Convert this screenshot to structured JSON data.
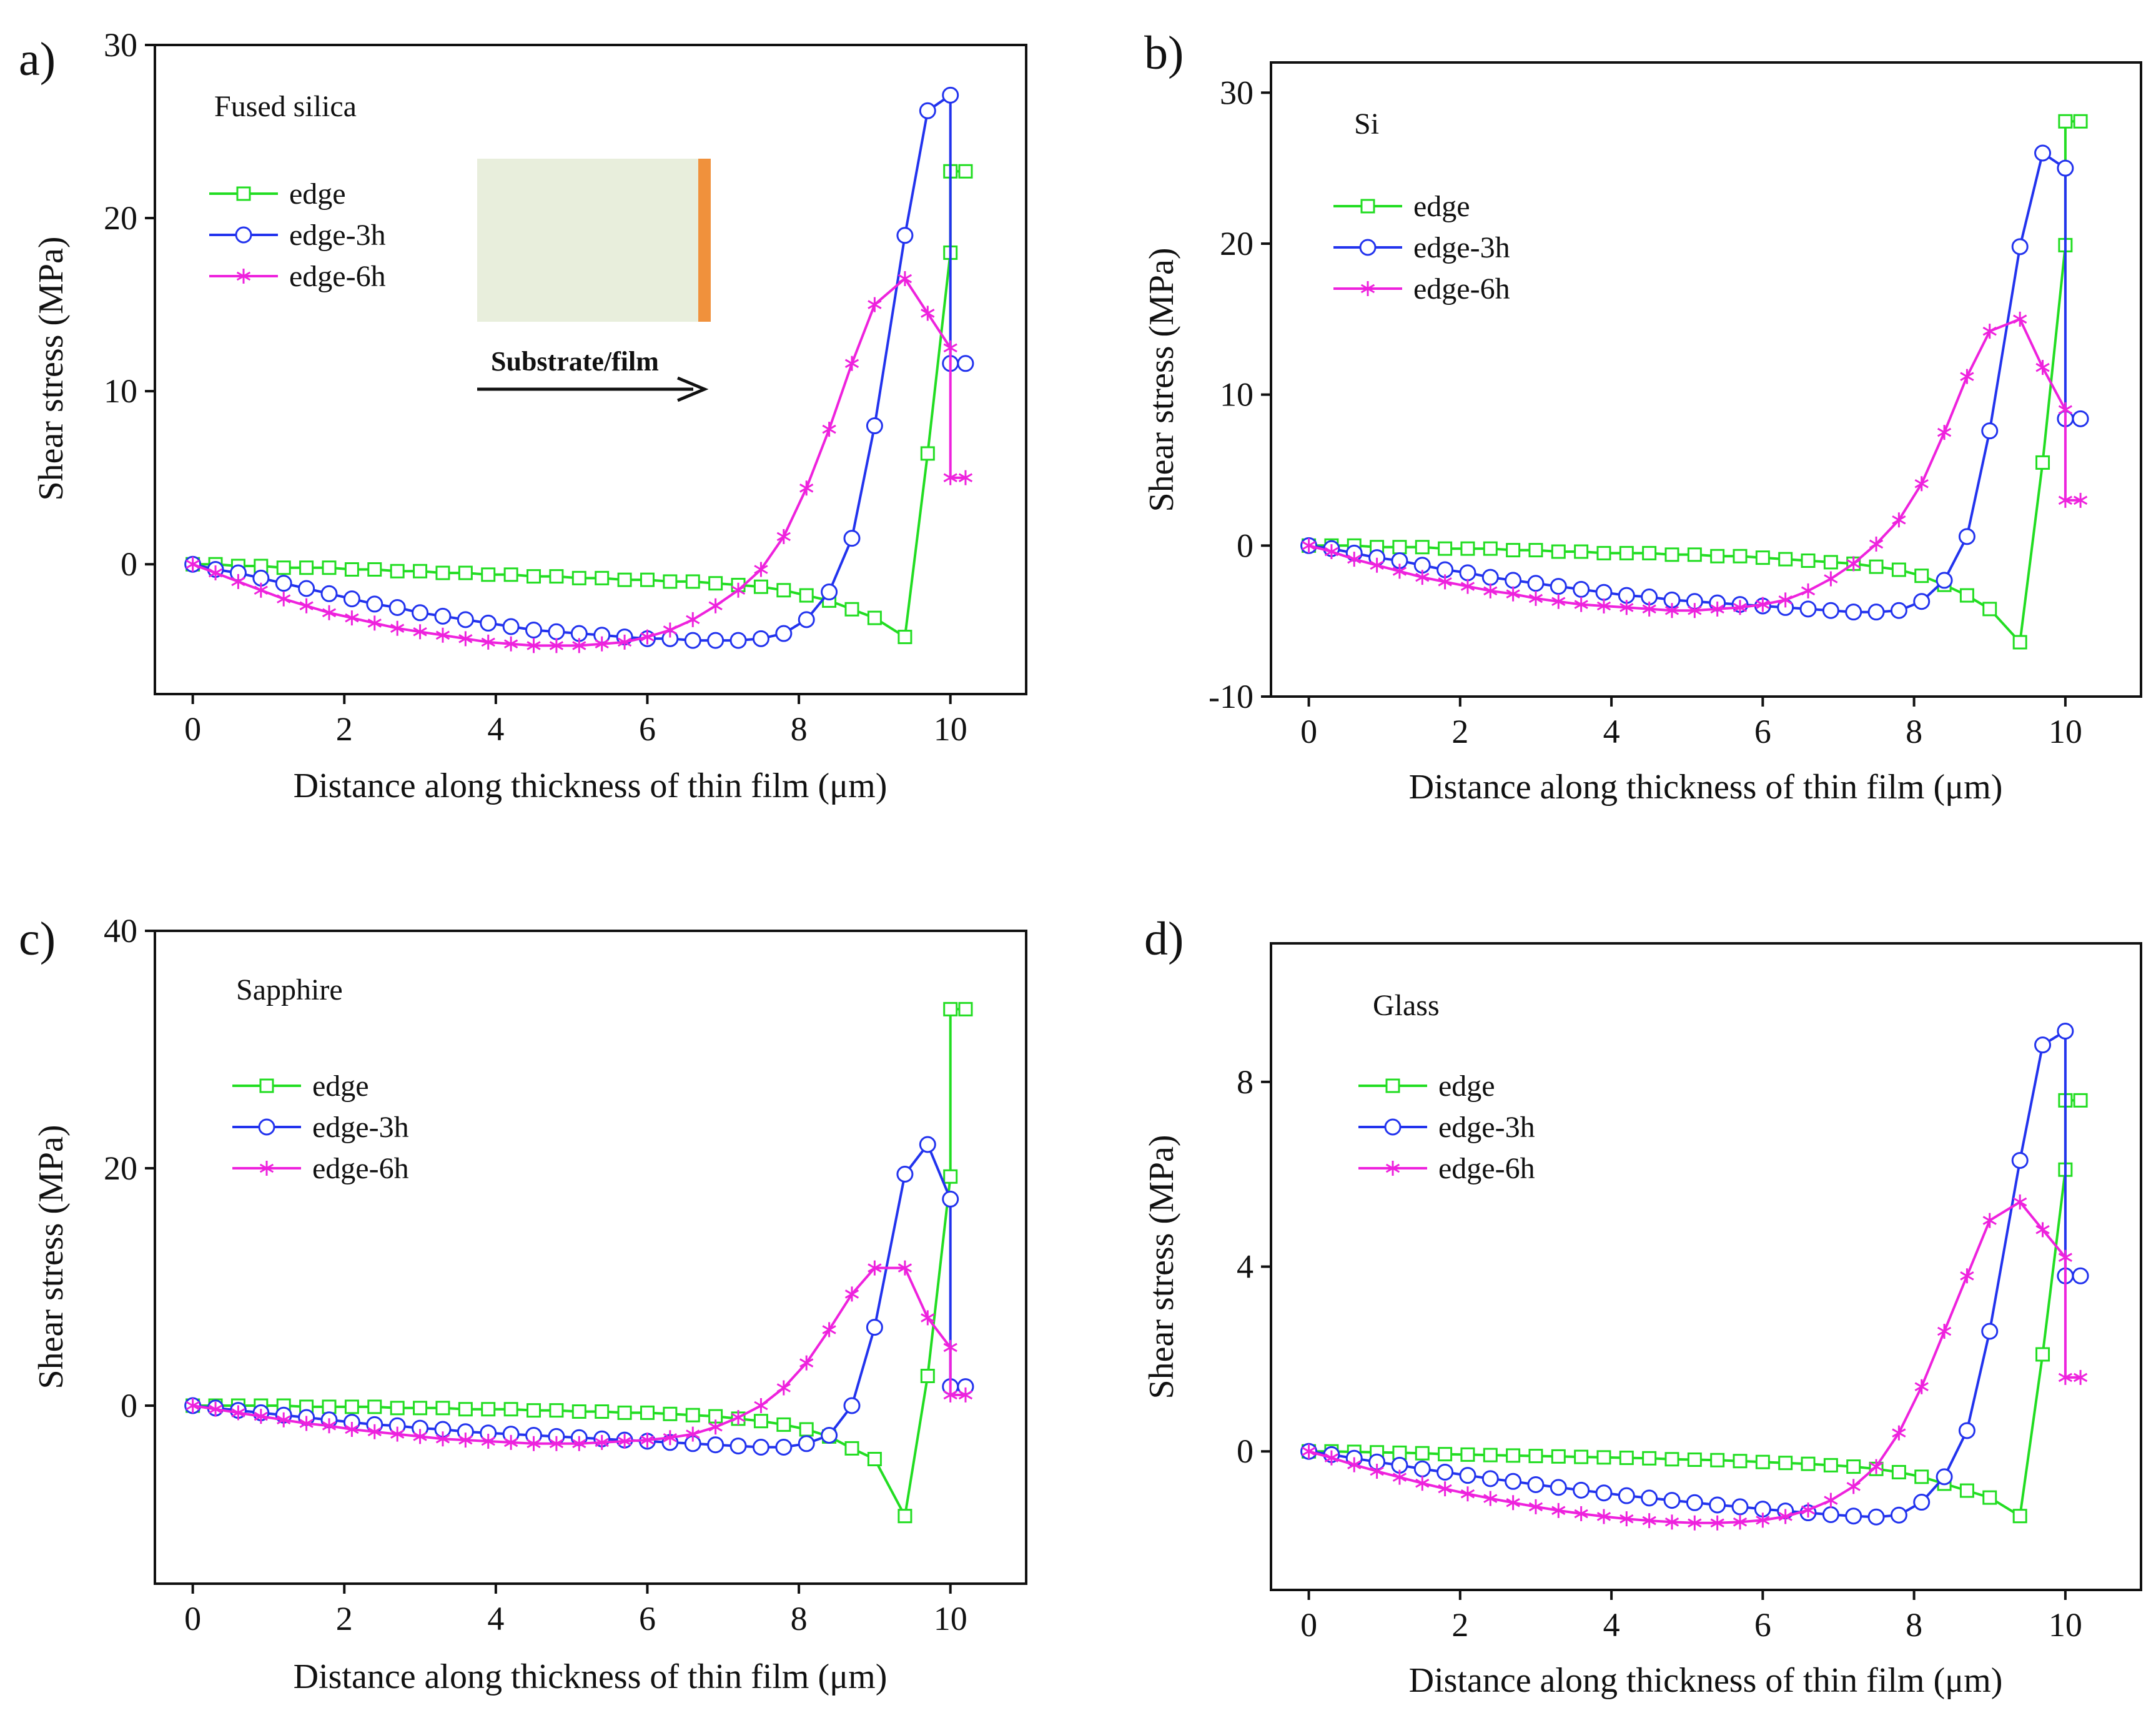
{
  "figure": {
    "inset": {
      "label": "Substrate/film",
      "substrate_color": "#e8eedc",
      "film_color": "#f0913c"
    },
    "series_styles": [
      {
        "name": "edge",
        "color": "#22dd22",
        "marker": "square"
      },
      {
        "name": "edge-3h",
        "color": "#2233ee",
        "marker": "circle"
      },
      {
        "name": "edge-6h",
        "color": "#ee22dd",
        "marker": "asterisk"
      }
    ]
  },
  "chart_data": [
    {
      "panel": "a)",
      "type": "line",
      "material": "Fused silica",
      "xlabel": "Distance along thickness of thin film (μm)",
      "ylabel": "Shear stress (MPa)",
      "xlim": [
        -0.5,
        11
      ],
      "ylim": [
        -7.5,
        30
      ],
      "xticks": [
        0,
        2,
        4,
        6,
        8,
        10
      ],
      "yticks": [
        0,
        10,
        20,
        30
      ],
      "legend": [
        "edge",
        "edge-3h",
        "edge-6h"
      ],
      "series": [
        {
          "name": "edge",
          "x": [
            0,
            0.3,
            0.6,
            0.9,
            1.2,
            1.5,
            1.8,
            2.1,
            2.4,
            2.7,
            3.0,
            3.3,
            3.6,
            3.9,
            4.2,
            4.5,
            4.8,
            5.1,
            5.4,
            5.7,
            6.0,
            6.3,
            6.6,
            6.9,
            7.2,
            7.5,
            7.8,
            8.1,
            8.4,
            8.7,
            9.0,
            9.4,
            9.7,
            10.0,
            10.0,
            10.2
          ],
          "y": [
            0,
            0,
            -0.1,
            -0.1,
            -0.2,
            -0.2,
            -0.2,
            -0.3,
            -0.3,
            -0.4,
            -0.4,
            -0.5,
            -0.5,
            -0.6,
            -0.6,
            -0.7,
            -0.7,
            -0.8,
            -0.8,
            -0.9,
            -0.9,
            -1.0,
            -1.0,
            -1.1,
            -1.2,
            -1.3,
            -1.5,
            -1.8,
            -2.1,
            -2.6,
            -3.1,
            -4.2,
            6.4,
            18.0,
            22.7,
            22.7
          ]
        },
        {
          "name": "edge-3h",
          "x": [
            0,
            0.3,
            0.6,
            0.9,
            1.2,
            1.5,
            1.8,
            2.1,
            2.4,
            2.7,
            3.0,
            3.3,
            3.6,
            3.9,
            4.2,
            4.5,
            4.8,
            5.1,
            5.4,
            5.7,
            6.0,
            6.3,
            6.6,
            6.9,
            7.2,
            7.5,
            7.8,
            8.1,
            8.4,
            8.7,
            9.0,
            9.4,
            9.7,
            10.0,
            10.0,
            10.2
          ],
          "y": [
            0,
            -0.3,
            -0.5,
            -0.8,
            -1.1,
            -1.4,
            -1.7,
            -2.0,
            -2.3,
            -2.5,
            -2.8,
            -3.0,
            -3.2,
            -3.4,
            -3.6,
            -3.8,
            -3.9,
            -4.0,
            -4.1,
            -4.2,
            -4.3,
            -4.3,
            -4.4,
            -4.4,
            -4.4,
            -4.3,
            -4.0,
            -3.2,
            -1.6,
            1.5,
            8.0,
            19.0,
            26.2,
            27.1,
            11.6,
            11.6
          ]
        },
        {
          "name": "edge-6h",
          "x": [
            0,
            0.3,
            0.6,
            0.9,
            1.2,
            1.5,
            1.8,
            2.1,
            2.4,
            2.7,
            3.0,
            3.3,
            3.6,
            3.9,
            4.2,
            4.5,
            4.8,
            5.1,
            5.4,
            5.7,
            6.0,
            6.3,
            6.6,
            6.9,
            7.2,
            7.5,
            7.8,
            8.1,
            8.4,
            8.7,
            9.0,
            9.4,
            9.7,
            10.0,
            10.0,
            10.2
          ],
          "y": [
            0,
            -0.5,
            -1.0,
            -1.5,
            -2.0,
            -2.4,
            -2.8,
            -3.1,
            -3.4,
            -3.7,
            -3.9,
            -4.1,
            -4.3,
            -4.5,
            -4.6,
            -4.7,
            -4.7,
            -4.7,
            -4.6,
            -4.5,
            -4.2,
            -3.8,
            -3.2,
            -2.4,
            -1.5,
            -0.3,
            1.6,
            4.4,
            7.8,
            11.6,
            15.0,
            16.5,
            14.5,
            12.5,
            5.0,
            5.0
          ]
        }
      ]
    },
    {
      "panel": "b)",
      "type": "line",
      "material": "Si",
      "xlabel": "Distance along thickness of thin film (μm)",
      "ylabel": "Shear stress (MPa)",
      "xlim": [
        -0.5,
        11
      ],
      "ylim": [
        -10,
        32
      ],
      "xticks": [
        0,
        2,
        4,
        6,
        8,
        10
      ],
      "yticks": [
        -10,
        0,
        10,
        20,
        30
      ],
      "legend": [
        "edge",
        "edge-3h",
        "edge-6h"
      ],
      "series": [
        {
          "name": "edge",
          "x": [
            0,
            0.3,
            0.6,
            0.9,
            1.2,
            1.5,
            1.8,
            2.1,
            2.4,
            2.7,
            3.0,
            3.3,
            3.6,
            3.9,
            4.2,
            4.5,
            4.8,
            5.1,
            5.4,
            5.7,
            6.0,
            6.3,
            6.6,
            6.9,
            7.2,
            7.5,
            7.8,
            8.1,
            8.4,
            8.7,
            9.0,
            9.4,
            9.7,
            10.0,
            10.0,
            10.2
          ],
          "y": [
            0,
            0,
            0,
            -0.1,
            -0.1,
            -0.1,
            -0.2,
            -0.2,
            -0.2,
            -0.3,
            -0.3,
            -0.4,
            -0.4,
            -0.5,
            -0.5,
            -0.5,
            -0.6,
            -0.6,
            -0.7,
            -0.7,
            -0.8,
            -0.9,
            -1.0,
            -1.1,
            -1.2,
            -1.4,
            -1.6,
            -2.0,
            -2.6,
            -3.3,
            -4.2,
            -6.4,
            5.5,
            19.9,
            28.1,
            28.1
          ]
        },
        {
          "name": "edge-3h",
          "x": [
            0,
            0.3,
            0.6,
            0.9,
            1.2,
            1.5,
            1.8,
            2.1,
            2.4,
            2.7,
            3.0,
            3.3,
            3.6,
            3.9,
            4.2,
            4.5,
            4.8,
            5.1,
            5.4,
            5.7,
            6.0,
            6.3,
            6.6,
            6.9,
            7.2,
            7.5,
            7.8,
            8.1,
            8.4,
            8.7,
            9.0,
            9.4,
            9.7,
            10.0,
            10.0,
            10.2
          ],
          "y": [
            0,
            -0.2,
            -0.5,
            -0.8,
            -1.0,
            -1.3,
            -1.6,
            -1.8,
            -2.1,
            -2.3,
            -2.5,
            -2.7,
            -2.9,
            -3.1,
            -3.3,
            -3.4,
            -3.6,
            -3.7,
            -3.8,
            -3.9,
            -4.0,
            -4.1,
            -4.2,
            -4.3,
            -4.4,
            -4.4,
            -4.3,
            -3.7,
            -2.3,
            0.6,
            7.6,
            19.8,
            26.0,
            25.0,
            8.4,
            8.4
          ]
        },
        {
          "name": "edge-6h",
          "x": [
            0,
            0.3,
            0.6,
            0.9,
            1.2,
            1.5,
            1.8,
            2.1,
            2.4,
            2.7,
            3.0,
            3.3,
            3.6,
            3.9,
            4.2,
            4.5,
            4.8,
            5.1,
            5.4,
            5.7,
            6.0,
            6.3,
            6.6,
            6.9,
            7.2,
            7.5,
            7.8,
            8.1,
            8.4,
            8.7,
            9.0,
            9.4,
            9.7,
            10.0,
            10.0,
            10.2
          ],
          "y": [
            0,
            -0.4,
            -0.9,
            -1.3,
            -1.7,
            -2.1,
            -2.4,
            -2.7,
            -3.0,
            -3.2,
            -3.5,
            -3.7,
            -3.9,
            -4.0,
            -4.1,
            -4.2,
            -4.3,
            -4.3,
            -4.2,
            -4.1,
            -3.9,
            -3.6,
            -3.0,
            -2.2,
            -1.2,
            0.1,
            1.7,
            4.1,
            7.5,
            11.2,
            14.2,
            15.0,
            11.8,
            9.0,
            3.0,
            3.0
          ]
        }
      ]
    },
    {
      "panel": "c)",
      "type": "line",
      "material": "Sapphire",
      "xlabel": "Distance along thickness of thin film (μm)",
      "ylabel": "Shear stress (MPa)",
      "xlim": [
        -0.5,
        11
      ],
      "ylim": [
        -15,
        40
      ],
      "xticks": [
        0,
        2,
        4,
        6,
        8,
        10
      ],
      "yticks": [
        0,
        20,
        40
      ],
      "legend": [
        "edge",
        "edge-3h",
        "edge-6h"
      ],
      "series": [
        {
          "name": "edge",
          "x": [
            0,
            0.3,
            0.6,
            0.9,
            1.2,
            1.5,
            1.8,
            2.1,
            2.4,
            2.7,
            3.0,
            3.3,
            3.6,
            3.9,
            4.2,
            4.5,
            4.8,
            5.1,
            5.4,
            5.7,
            6.0,
            6.3,
            6.6,
            6.9,
            7.2,
            7.5,
            7.8,
            8.1,
            8.4,
            8.7,
            9.0,
            9.4,
            9.7,
            10.0,
            10.0,
            10.2
          ],
          "y": [
            0,
            0,
            0,
            0,
            0,
            -0.1,
            -0.1,
            -0.1,
            -0.1,
            -0.2,
            -0.2,
            -0.2,
            -0.3,
            -0.3,
            -0.3,
            -0.4,
            -0.4,
            -0.5,
            -0.5,
            -0.6,
            -0.6,
            -0.7,
            -0.8,
            -0.9,
            -1.1,
            -1.3,
            -1.6,
            -2.0,
            -2.6,
            -3.6,
            -4.5,
            -9.3,
            2.5,
            19.3,
            33.4,
            33.4
          ]
        },
        {
          "name": "edge-3h",
          "x": [
            0,
            0.3,
            0.6,
            0.9,
            1.2,
            1.5,
            1.8,
            2.1,
            2.4,
            2.7,
            3.0,
            3.3,
            3.6,
            3.9,
            4.2,
            4.5,
            4.8,
            5.1,
            5.4,
            5.7,
            6.0,
            6.3,
            6.6,
            6.9,
            7.2,
            7.5,
            7.8,
            8.1,
            8.4,
            8.7,
            9.0,
            9.4,
            9.7,
            10.0,
            10.0,
            10.2
          ],
          "y": [
            0,
            -0.2,
            -0.4,
            -0.6,
            -0.8,
            -1.0,
            -1.2,
            -1.4,
            -1.6,
            -1.7,
            -1.9,
            -2.0,
            -2.2,
            -2.3,
            -2.4,
            -2.5,
            -2.6,
            -2.7,
            -2.8,
            -2.9,
            -3.0,
            -3.1,
            -3.2,
            -3.3,
            -3.4,
            -3.5,
            -3.5,
            -3.2,
            -2.5,
            0,
            6.6,
            19.5,
            22.0,
            17.4,
            1.6,
            1.6
          ]
        },
        {
          "name": "edge-6h",
          "x": [
            0,
            0.3,
            0.6,
            0.9,
            1.2,
            1.5,
            1.8,
            2.1,
            2.4,
            2.7,
            3.0,
            3.3,
            3.6,
            3.9,
            4.2,
            4.5,
            4.8,
            5.1,
            5.4,
            5.7,
            6.0,
            6.3,
            6.6,
            6.9,
            7.2,
            7.5,
            7.8,
            8.1,
            8.4,
            8.7,
            9.0,
            9.4,
            9.7,
            10.0,
            10.0,
            10.2
          ],
          "y": [
            0,
            -0.3,
            -0.6,
            -0.9,
            -1.2,
            -1.5,
            -1.7,
            -2.0,
            -2.2,
            -2.4,
            -2.6,
            -2.8,
            -2.9,
            -3.0,
            -3.1,
            -3.2,
            -3.2,
            -3.2,
            -3.1,
            -3.0,
            -2.9,
            -2.7,
            -2.4,
            -1.8,
            -1.0,
            0,
            1.5,
            3.6,
            6.4,
            9.4,
            11.6,
            11.6,
            7.4,
            4.9,
            0.9,
            0.9
          ]
        }
      ]
    },
    {
      "panel": "d)",
      "type": "line",
      "material": "Glass",
      "xlabel": "Distance along thickness of thin film (μm)",
      "ylabel": "Shear stress (MPa)",
      "xlim": [
        -0.5,
        11
      ],
      "ylim": [
        -3,
        11
      ],
      "xticks": [
        0,
        2,
        4,
        6,
        8,
        10
      ],
      "yticks": [
        0,
        4,
        8
      ],
      "legend": [
        "edge",
        "edge-3h",
        "edge-6h"
      ],
      "series": [
        {
          "name": "edge",
          "x": [
            0,
            0.3,
            0.6,
            0.9,
            1.2,
            1.5,
            1.8,
            2.1,
            2.4,
            2.7,
            3.0,
            3.3,
            3.6,
            3.9,
            4.2,
            4.5,
            4.8,
            5.1,
            5.4,
            5.7,
            6.0,
            6.3,
            6.6,
            6.9,
            7.2,
            7.5,
            7.8,
            8.1,
            8.4,
            8.7,
            9.0,
            9.4,
            9.7,
            10.0,
            10.0,
            10.2
          ],
          "y": [
            0,
            0,
            -0.01,
            -0.02,
            -0.03,
            -0.04,
            -0.06,
            -0.07,
            -0.08,
            -0.09,
            -0.1,
            -0.11,
            -0.12,
            -0.13,
            -0.14,
            -0.15,
            -0.17,
            -0.18,
            -0.19,
            -0.21,
            -0.23,
            -0.25,
            -0.27,
            -0.3,
            -0.33,
            -0.38,
            -0.45,
            -0.55,
            -0.7,
            -0.85,
            -1.0,
            -1.4,
            2.1,
            6.1,
            7.6,
            7.6
          ]
        },
        {
          "name": "edge-3h",
          "x": [
            0,
            0.3,
            0.6,
            0.9,
            1.2,
            1.5,
            1.8,
            2.1,
            2.4,
            2.7,
            3.0,
            3.3,
            3.6,
            3.9,
            4.2,
            4.5,
            4.8,
            5.1,
            5.4,
            5.7,
            6.0,
            6.3,
            6.6,
            6.9,
            7.2,
            7.5,
            7.8,
            8.1,
            8.4,
            8.7,
            9.0,
            9.4,
            9.7,
            10.0,
            10.0,
            10.2
          ],
          "y": [
            0,
            -0.07,
            -0.15,
            -0.23,
            -0.3,
            -0.38,
            -0.45,
            -0.52,
            -0.59,
            -0.65,
            -0.72,
            -0.78,
            -0.84,
            -0.9,
            -0.96,
            -1.01,
            -1.06,
            -1.11,
            -1.16,
            -1.2,
            -1.25,
            -1.29,
            -1.33,
            -1.37,
            -1.4,
            -1.42,
            -1.38,
            -1.1,
            -0.55,
            0.45,
            2.6,
            6.3,
            8.8,
            9.1,
            3.8,
            3.8
          ]
        },
        {
          "name": "edge-6h",
          "x": [
            0,
            0.3,
            0.6,
            0.9,
            1.2,
            1.5,
            1.8,
            2.1,
            2.4,
            2.7,
            3.0,
            3.3,
            3.6,
            3.9,
            4.2,
            4.5,
            4.8,
            5.1,
            5.4,
            5.7,
            6.0,
            6.3,
            6.6,
            6.9,
            7.2,
            7.5,
            7.8,
            8.1,
            8.4,
            8.7,
            9.0,
            9.4,
            9.7,
            10.0,
            10.0,
            10.2
          ],
          "y": [
            0,
            -0.14,
            -0.29,
            -0.43,
            -0.56,
            -0.69,
            -0.81,
            -0.92,
            -1.02,
            -1.11,
            -1.2,
            -1.28,
            -1.35,
            -1.41,
            -1.46,
            -1.5,
            -1.53,
            -1.55,
            -1.55,
            -1.53,
            -1.49,
            -1.41,
            -1.27,
            -1.06,
            -0.76,
            -0.33,
            0.4,
            1.4,
            2.6,
            3.8,
            5.0,
            5.4,
            4.8,
            4.2,
            1.6,
            1.6
          ]
        }
      ]
    }
  ]
}
